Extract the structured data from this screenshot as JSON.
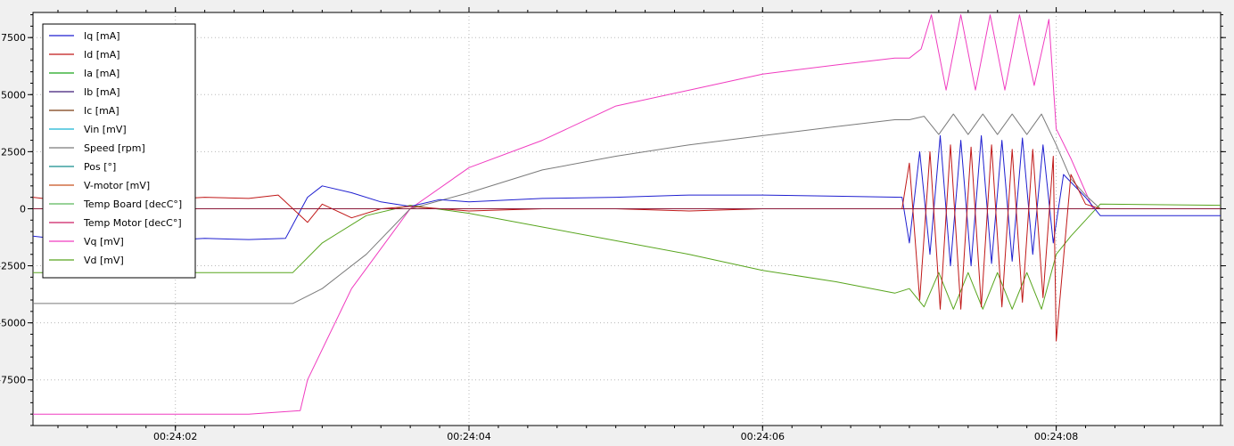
{
  "chart_data": {
    "type": "line",
    "title": "",
    "xlabel": "",
    "ylabel": "",
    "xlim": [
      1.03,
      9.12
    ],
    "ylim": [
      -9500,
      8600
    ],
    "x_unit": "s after 00:24:00",
    "x_ticks": [
      {
        "value": 2,
        "label": "00:24:02"
      },
      {
        "value": 4,
        "label": "00:24:04"
      },
      {
        "value": 6,
        "label": "00:24:06"
      },
      {
        "value": 8,
        "label": "00:24:08"
      }
    ],
    "y_ticks": [
      {
        "value": 7500,
        "label": "7500"
      },
      {
        "value": 5000,
        "label": "5000"
      },
      {
        "value": 2500,
        "label": "2500"
      },
      {
        "value": 0,
        "label": "0"
      },
      {
        "value": -2500,
        "label": "-2500"
      },
      {
        "value": -5000,
        "label": "-5000"
      },
      {
        "value": -7500,
        "label": "-7500"
      }
    ],
    "grid": true,
    "legend_position": "top-left",
    "legend": [
      {
        "name": "Iq [mA]",
        "color": "#1f1fd0"
      },
      {
        "name": "Id [mA]",
        "color": "#c01818"
      },
      {
        "name": "Ia [mA]",
        "color": "#1aa51a"
      },
      {
        "name": "Ib [mA]",
        "color": "#3d1a78"
      },
      {
        "name": "Ic [mA]",
        "color": "#7a3c10"
      },
      {
        "name": "Vin [mV]",
        "color": "#17b4d4"
      },
      {
        "name": "Speed [rpm]",
        "color": "#7a7a7a"
      },
      {
        "name": "Pos [°]",
        "color": "#158c8c"
      },
      {
        "name": "V-motor [mV]",
        "color": "#c8501e"
      },
      {
        "name": "Temp Board [decC°]",
        "color": "#5bb85b"
      },
      {
        "name": "Temp Motor [decC°]",
        "color": "#cc1f63"
      },
      {
        "name": "Vq [mV]",
        "color": "#f03cc0"
      },
      {
        "name": "Vd [mV]",
        "color": "#58a51e"
      }
    ],
    "series": [
      {
        "name": "Vq [mV]",
        "color": "#f03cc0",
        "x": [
          1.03,
          2.5,
          2.85,
          2.9,
          3.2,
          3.6,
          4.0,
          4.5,
          5.0,
          5.5,
          6.0,
          6.5,
          6.9,
          7.0,
          7.08,
          7.15,
          7.25,
          7.35,
          7.45,
          7.55,
          7.65,
          7.75,
          7.85,
          7.95,
          8.0,
          8.1,
          8.25,
          9.12
        ],
        "y": [
          -9000,
          -9000,
          -8850,
          -7500,
          -3500,
          0,
          1800,
          3000,
          4500,
          5200,
          5900,
          6300,
          6600,
          6600,
          7000,
          8500,
          5200,
          8500,
          5200,
          8500,
          5200,
          8500,
          5400,
          8300,
          3500,
          2200,
          0,
          0
        ]
      },
      {
        "name": "Speed [rpm]",
        "color": "#7a7a7a",
        "x": [
          1.03,
          2.8,
          3.0,
          3.3,
          3.6,
          4.0,
          4.5,
          5.0,
          5.5,
          6.0,
          6.5,
          6.9,
          7.0,
          7.1,
          7.2,
          7.3,
          7.4,
          7.5,
          7.6,
          7.7,
          7.8,
          7.9,
          8.0,
          8.1,
          8.2,
          8.3,
          9.12
        ],
        "y": [
          -4150,
          -4150,
          -3500,
          -2000,
          0,
          700,
          1700,
          2300,
          2800,
          3200,
          3600,
          3900,
          3900,
          4050,
          3250,
          4150,
          3250,
          4150,
          3250,
          4150,
          3250,
          4150,
          2800,
          1300,
          600,
          0,
          0
        ]
      },
      {
        "name": "Vd [mV]",
        "color": "#58a51e",
        "x": [
          1.03,
          2.8,
          3.0,
          3.3,
          3.6,
          4.0,
          4.5,
          5.0,
          5.5,
          6.0,
          6.5,
          6.9,
          7.0,
          7.1,
          7.2,
          7.3,
          7.4,
          7.5,
          7.6,
          7.7,
          7.8,
          7.9,
          8.0,
          8.1,
          8.2,
          8.3,
          9.12
        ],
        "y": [
          -2800,
          -2800,
          -1500,
          -300,
          150,
          -200,
          -800,
          -1400,
          -2000,
          -2700,
          -3200,
          -3700,
          -3500,
          -4300,
          -2800,
          -4400,
          -2800,
          -4400,
          -2800,
          -4400,
          -2800,
          -4400,
          -2000,
          -1200,
          -500,
          200,
          150
        ]
      },
      {
        "name": "Iq [mA]",
        "color": "#1f1fd0",
        "x": [
          1.03,
          1.3,
          1.6,
          1.9,
          2.2,
          2.5,
          2.75,
          2.9,
          3.0,
          3.2,
          3.4,
          3.6,
          3.8,
          4.0,
          4.5,
          5.0,
          5.5,
          6.0,
          6.5,
          6.95,
          7.0,
          7.07,
          7.14,
          7.21,
          7.28,
          7.35,
          7.42,
          7.49,
          7.56,
          7.63,
          7.7,
          7.77,
          7.84,
          7.91,
          7.98,
          8.05,
          8.2,
          8.3,
          9.12
        ],
        "y": [
          -1200,
          -1400,
          -1300,
          -1400,
          -1300,
          -1350,
          -1300,
          500,
          1000,
          700,
          300,
          100,
          400,
          300,
          450,
          500,
          600,
          600,
          550,
          500,
          -1500,
          2500,
          -2000,
          3200,
          -2500,
          3000,
          -2500,
          3200,
          -2400,
          3000,
          -2300,
          3100,
          -2000,
          2800,
          -1500,
          1500,
          500,
          -300,
          -300
        ]
      },
      {
        "name": "Id [mA]",
        "color": "#c01818",
        "x": [
          1.03,
          1.3,
          1.6,
          1.9,
          2.2,
          2.5,
          2.7,
          2.9,
          3.0,
          3.2,
          3.4,
          3.6,
          4.0,
          4.5,
          5.0,
          5.5,
          6.0,
          6.5,
          6.95,
          7.0,
          7.07,
          7.14,
          7.21,
          7.28,
          7.35,
          7.42,
          7.49,
          7.56,
          7.63,
          7.7,
          7.77,
          7.84,
          7.91,
          7.98,
          8.0,
          8.1,
          8.2,
          8.3,
          9.12
        ],
        "y": [
          500,
          300,
          500,
          400,
          500,
          450,
          600,
          -600,
          200,
          -400,
          0,
          100,
          -100,
          0,
          0,
          -100,
          0,
          0,
          0,
          2000,
          -4000,
          2500,
          -4400,
          2800,
          -4400,
          2700,
          -4300,
          2800,
          -4300,
          2600,
          -4100,
          2600,
          -3900,
          2300,
          -5800,
          1500,
          200,
          0,
          0
        ]
      },
      {
        "name": "Temp Motor [decC°]",
        "color": "#8b1a3a",
        "x": [
          1.03,
          9.12
        ],
        "y": [
          0,
          0
        ]
      }
    ]
  }
}
